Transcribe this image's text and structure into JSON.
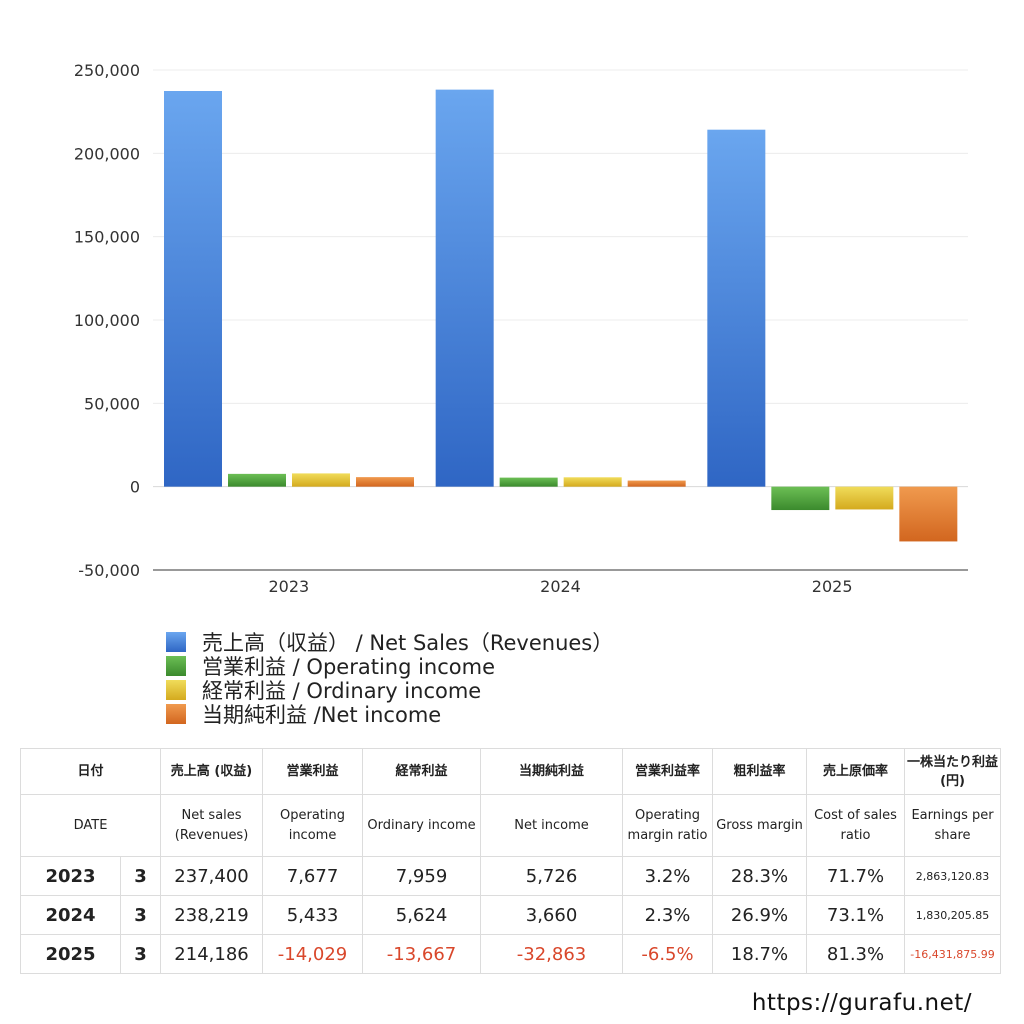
{
  "chart_data": {
    "type": "bar",
    "categories": [
      "2023",
      "2024",
      "2025"
    ],
    "series": [
      {
        "name": "売上高（収益） / Net Sales（Revenues）",
        "values": [
          237400,
          238219,
          214186
        ],
        "color": "#4a8fe4"
      },
      {
        "name": "営業利益 / Operating income",
        "values": [
          7677,
          5433,
          -14029
        ],
        "color": "#4f9f3c"
      },
      {
        "name": "経常利益 / Ordinary income",
        "values": [
          7959,
          5624,
          -13667
        ],
        "color": "#e0c033"
      },
      {
        "name": "当期純利益 /Net income",
        "values": [
          5726,
          3660,
          -32863
        ],
        "color": "#e07a2e"
      }
    ],
    "ylim": [
      -50000,
      250000
    ],
    "yticks": [
      "250,000",
      "200,000",
      "150,000",
      "100,000",
      "50,000",
      "0",
      "-50,000"
    ],
    "grid": true,
    "legend_position": "bottom"
  },
  "table": {
    "headers_jp": [
      "日付",
      "売上高 (収益)",
      "営業利益",
      "経常利益",
      "当期純利益",
      "営業利益率",
      "粗利益率",
      "売上原価率",
      "一株当たり利益(円)"
    ],
    "headers_en": [
      "DATE",
      "Net sales (Revenues)",
      "Operating income",
      "Ordinary income",
      "Net income",
      "Operating margin ratio",
      "Gross margin",
      "Cost of sales ratio",
      "Earnings per share"
    ],
    "rows": [
      {
        "year": "2023",
        "month": "3",
        "sales": "237,400",
        "operating": "7,677",
        "ordinary": "7,959",
        "net": "5,726",
        "op_margin": "3.2%",
        "gross": "28.3%",
        "cost": "71.7%",
        "eps": "2,863,120.83"
      },
      {
        "year": "2024",
        "month": "3",
        "sales": "238,219",
        "operating": "5,433",
        "ordinary": "5,624",
        "net": "3,660",
        "op_margin": "2.3%",
        "gross": "26.9%",
        "cost": "73.1%",
        "eps": "1,830,205.85"
      },
      {
        "year": "2025",
        "month": "3",
        "sales": "214,186",
        "operating": "-14,029",
        "ordinary": "-13,667",
        "net": "-32,863",
        "op_margin": "-6.5%",
        "gross": "18.7%",
        "cost": "81.3%",
        "eps": "-16,431,875.99"
      }
    ]
  },
  "footer": {
    "url": "https://gurafu.net/"
  }
}
